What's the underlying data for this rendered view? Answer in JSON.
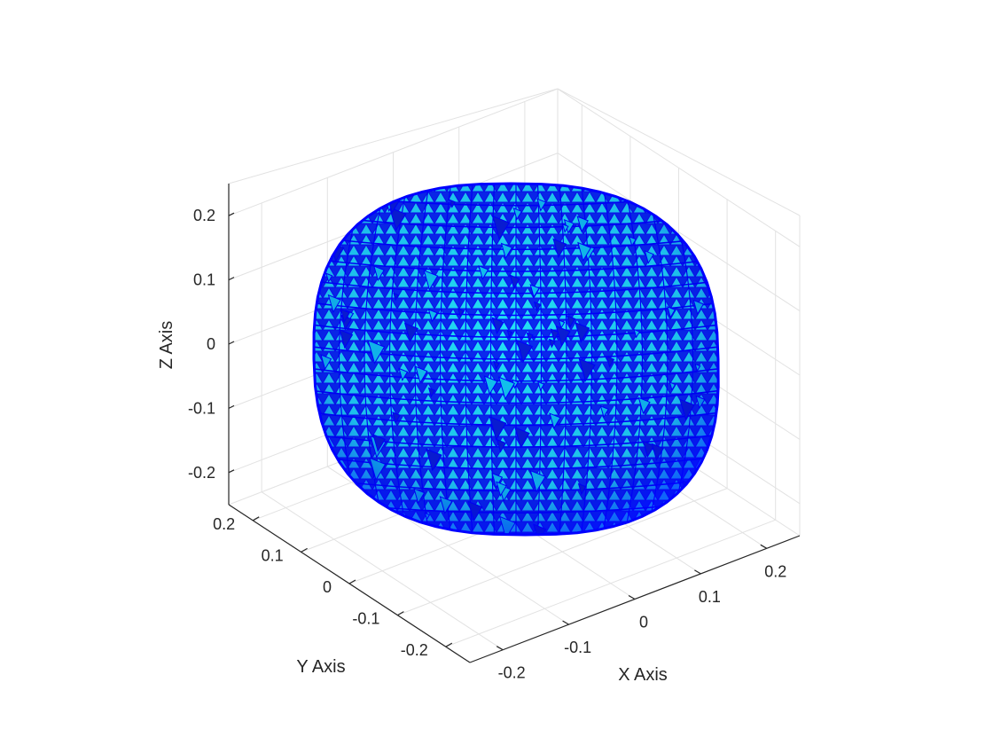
{
  "figure": {
    "background": "#ffffff"
  },
  "chart_data": {
    "type": "surface-mesh-3d",
    "title": "",
    "xlabel": "X Axis",
    "ylabel": "Y Axis",
    "zlabel": "Z Axis",
    "xlim": [
      -0.25,
      0.25
    ],
    "ylim": [
      -0.25,
      0.25
    ],
    "zlim": [
      -0.25,
      0.25
    ],
    "xticks": [
      -0.2,
      -0.1,
      0,
      0.1,
      0.2
    ],
    "yticks": [
      -0.2,
      -0.1,
      0,
      0.1,
      0.2
    ],
    "zticks": [
      -0.2,
      -0.1,
      0,
      0.1,
      0.2
    ],
    "xtick_labels": [
      "-0.2",
      "-0.1",
      "0",
      "0.1",
      "0.2"
    ],
    "ytick_labels": [
      "-0.2",
      "-0.1",
      "0",
      "0.1",
      "0.2"
    ],
    "ztick_labels": [
      "-0.2",
      "-0.1",
      "0",
      "0.1",
      "0.2"
    ],
    "grid": true,
    "view": "isometric 3D",
    "object": {
      "shape": "rounded asteroid-like body (triangulated mesh)",
      "center": [
        0,
        0,
        0
      ],
      "radius_x": 0.25,
      "radius_y": 0.25,
      "radius_z": 0.27,
      "face_color": "#00ffff",
      "edge_color": "#0000ff"
    }
  }
}
